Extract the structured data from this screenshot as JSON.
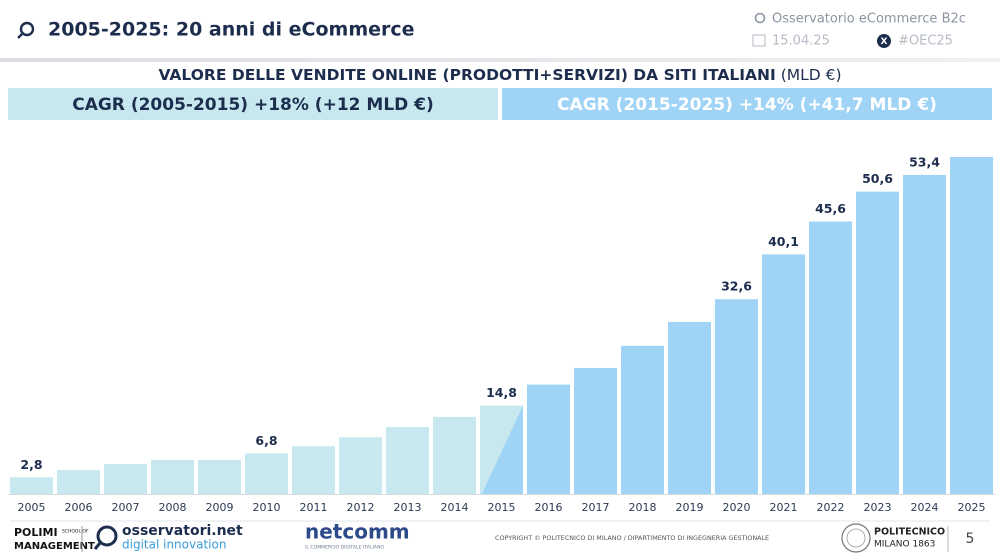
{
  "header": {
    "title": "2005-2025: 20 anni di eCommerce",
    "observatory": "Osservatorio eCommerce B2c",
    "date": "15.04.25",
    "hashtag": "#OEC25"
  },
  "chart_data": {
    "type": "bar",
    "title": "VALORE DELLE VENDITE ONLINE (PRODOTTI+SERVIZI) DA SITI ITALIANI",
    "unit": "(MLD €)",
    "cagr_labels": [
      "CAGR (2005-2015) +18% (+12 MLD €)",
      "CAGR (2015-2025) +14% (+41,7 MLD €)"
    ],
    "categories": [
      "2005",
      "2006",
      "2007",
      "2008",
      "2009",
      "2010",
      "2011",
      "2012",
      "2013",
      "2014",
      "2015",
      "2016",
      "2017",
      "2018",
      "2019",
      "2020",
      "2021",
      "2022",
      "2023",
      "2024",
      "2025"
    ],
    "values": [
      2.8,
      4.0,
      5.0,
      5.7,
      5.7,
      6.8,
      8.0,
      9.5,
      11.2,
      12.9,
      14.8,
      18.3,
      21.1,
      24.8,
      28.8,
      32.6,
      40.1,
      45.6,
      50.6,
      53.4,
      56.4
    ],
    "value_labels": [
      "2,8",
      null,
      null,
      null,
      null,
      "6,8",
      null,
      null,
      null,
      null,
      "14,8",
      null,
      null,
      null,
      null,
      "32,6",
      "40,1",
      "45,6",
      "50,6",
      "53,4",
      null
    ],
    "colors": [
      "#c6e8ee",
      "#c6e8ee",
      "#c6e8ee",
      "#c6e8ee",
      "#c6e8ee",
      "#c6e8ee",
      "#c6e8ee",
      "#c6e8ee",
      "#c6e8ee",
      "#c6e8ee",
      "#c6e8ee",
      "#9fd4f6",
      "#9fd4f6",
      "#9fd4f6",
      "#9fd4f6",
      "#9fd4f6",
      "#9fd4f6",
      "#9fd4f6",
      "#9fd4f6",
      "#9fd4f6",
      "#9fd4f6"
    ],
    "cagr_colors": [
      "#c6e8ee",
      "#9fd4f6"
    ]
  },
  "footer": {
    "polimi": "POLIMI",
    "school_of": "SCHOOL OF",
    "management": "MANAGEMENT",
    "osservatori": "osservatori.net",
    "digital_innovation": "digital innovation",
    "netcomm": "netcomm",
    "netcomm_tagline": "IL COMMERCIO DIGITALE ITALIANO",
    "copyright": "COPYRIGHT © POLITECNICO DI MILANO / DIPARTIMENTO DI INGEGNERIA GESTIONALE",
    "politecnico": "POLITECNICO",
    "milano": "MILANO 1863",
    "page_number": "5"
  }
}
